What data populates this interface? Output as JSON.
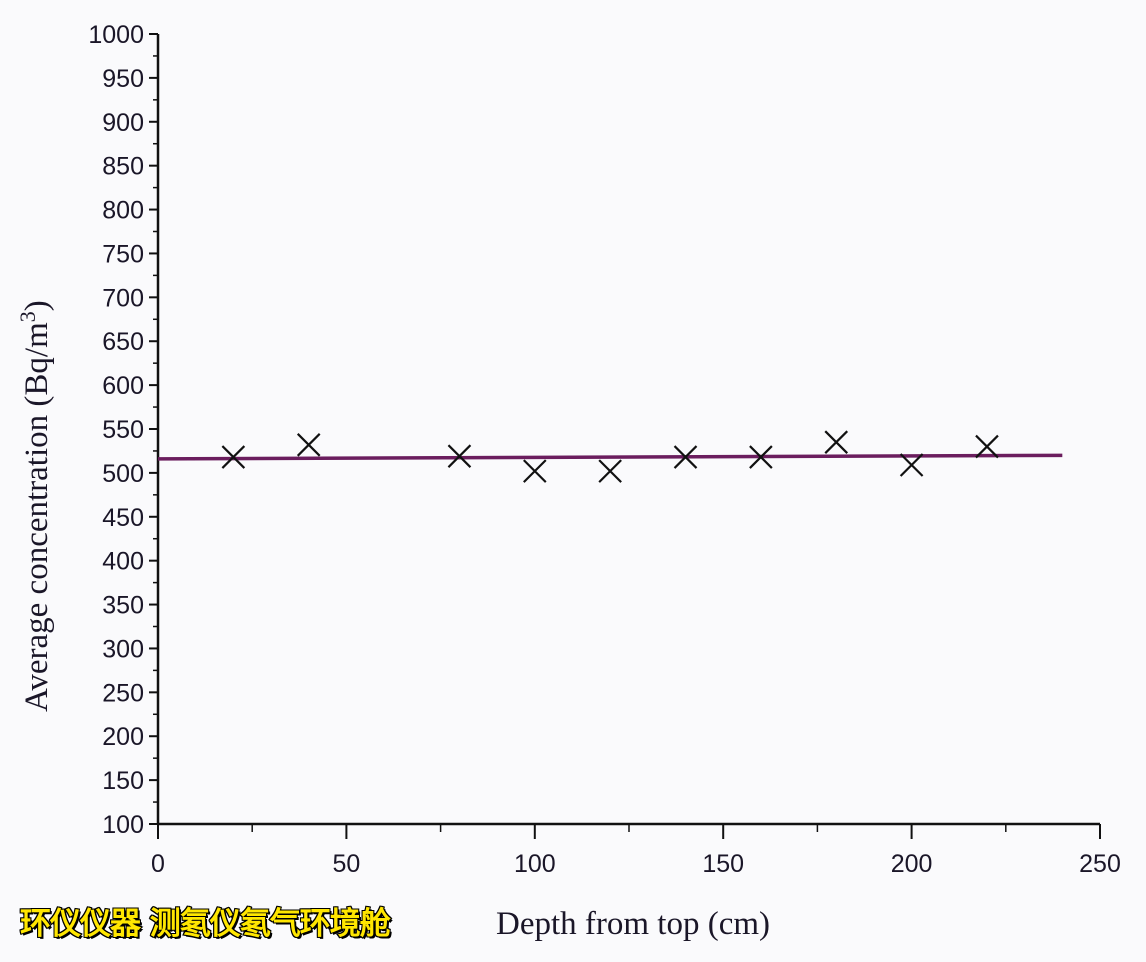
{
  "chart_data": {
    "type": "scatter",
    "title": "",
    "xlabel": "Depth  from top (cm)",
    "ylabel": "Average concentration (Bq/m",
    "ylabel_superscript": "3",
    "ylabel_suffix": ")",
    "xlim": [
      0,
      250
    ],
    "ylim": [
      100,
      1000
    ],
    "xticks": [
      0,
      50,
      100,
      150,
      200,
      250
    ],
    "yticks": [
      100,
      150,
      200,
      250,
      300,
      350,
      400,
      450,
      500,
      550,
      600,
      650,
      700,
      750,
      800,
      850,
      900,
      950,
      1000
    ],
    "grid": false,
    "marker": "x",
    "points": {
      "x": [
        20,
        40,
        80,
        100,
        120,
        140,
        160,
        180,
        200,
        220
      ],
      "y": [
        518,
        532,
        519,
        502,
        502,
        518,
        518,
        535,
        509,
        530
      ]
    },
    "fit_line": {
      "x": [
        0,
        240
      ],
      "y": [
        516,
        520
      ]
    },
    "colors": {
      "fit_line": "#6b1d5e",
      "markers": "#111111",
      "axes": "#111111"
    }
  },
  "watermark": "环仪仪器 测氡仪氡气环境舱"
}
